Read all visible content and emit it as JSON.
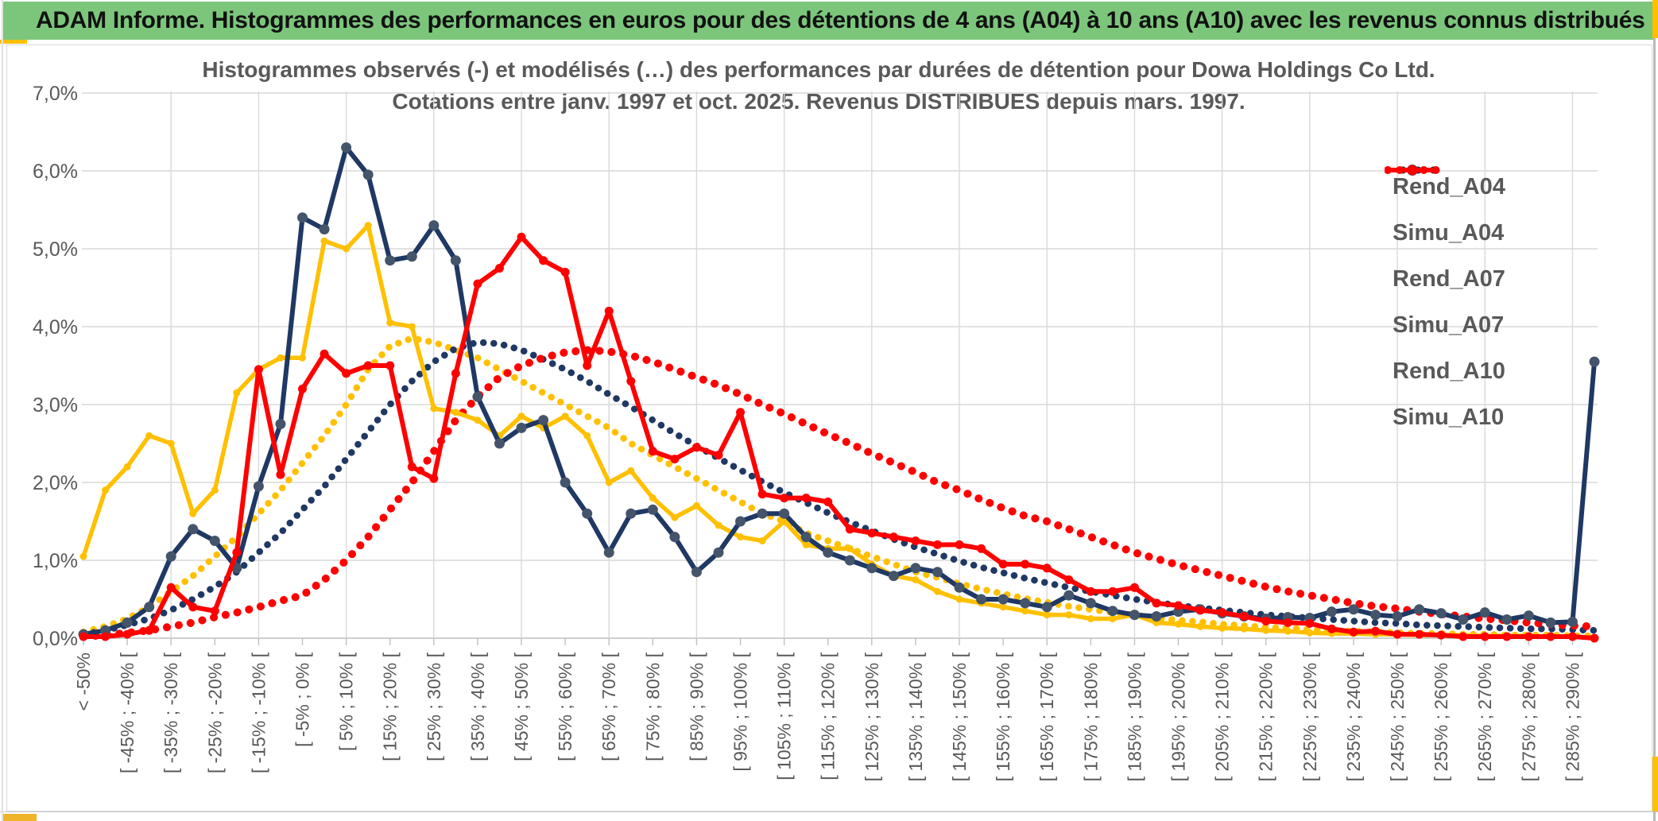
{
  "header": {
    "title": "ADAM Informe. Histogrammes des performances en euros pour des détentions de 4 ans (A04) à 10 ans (A10) avec les revenus connus distribués"
  },
  "chart_data": {
    "type": "line",
    "title": "Histogrammes observés (-) et modélisés (…) des performances par durées de détention pour Dowa Holdings Co Ltd.",
    "subtitle": "Cotations entre janv. 1997 et oct. 2025. Revenus DISTRIBUES depuis mars. 1997.",
    "ylabel": "",
    "xlabel": "",
    "ylim": [
      0,
      7
    ],
    "grid": true,
    "legend_position": "right",
    "y_tick_labels": [
      "0,0%",
      "1,0%",
      "2,0%",
      "3,0%",
      "4,0%",
      "5,0%",
      "6,0%",
      "7,0%"
    ],
    "n_bins": 70,
    "x_tick_every": 2,
    "x_tick_labels": [
      "< -50%",
      "[ -45% ; -40% [",
      "[ -35% ; -30% [",
      "[ -25% ; -20% [",
      "[ -15% ; -10% [",
      "[ -5% ; 0% [",
      "[ 5% ; 10% [",
      "[ 15% ; 20% [",
      "[ 25% ; 30% [",
      "[ 35% ; 40% [",
      "[ 45% ; 50% [",
      "[ 55% ; 60% [",
      "[ 65% ; 70% [",
      "[ 75% ; 80% [",
      "[ 85% ; 90% [",
      "[ 95% ; 100% [",
      "[ 105% ; 110% [",
      "[ 115% ; 120% [",
      "[ 125% ; 130% [",
      "[ 135% ; 140% [",
      "[ 145% ; 150% [",
      "[ 155% ; 160% [",
      "[ 165% ; 170% [",
      "[ 175% ; 180% [",
      "[ 185% ; 190% [",
      "[ 195% ; 200% [",
      "[ 205% ; 210% [",
      "[ 215% ; 220% [",
      "[ 225% ; 230% [",
      "[ 235% ; 240% [",
      "[ 245% ; 250% [",
      "[ 255% ; 260% [",
      "[ 265% ; 270% [",
      "[ 275% ; 280% [",
      "[ 285% ; 290% ["
    ],
    "colors": {
      "gold": "#FFC000",
      "navy": "#1F3864",
      "navy_marker": "#44546A",
      "red": "#FF0000",
      "grid": "#D9D9D9",
      "axis": "#BFBFBF",
      "text": "#595959",
      "header_green": "#7CC67C"
    },
    "series": [
      {
        "name": "Rend_A04",
        "style": "solid",
        "color": "#FFC000",
        "marker": "#FFC000",
        "values": [
          1.05,
          1.9,
          2.2,
          2.6,
          2.5,
          1.6,
          1.9,
          3.15,
          3.45,
          3.6,
          3.6,
          5.1,
          5.0,
          5.3,
          4.05,
          4.0,
          2.95,
          2.9,
          2.8,
          2.6,
          2.85,
          2.7,
          2.85,
          2.6,
          2.0,
          2.15,
          1.8,
          1.55,
          1.7,
          1.45,
          1.3,
          1.25,
          1.5,
          1.2,
          1.15,
          1.15,
          0.95,
          0.8,
          0.75,
          0.6,
          0.5,
          0.45,
          0.4,
          0.35,
          0.3,
          0.3,
          0.25,
          0.25,
          0.3,
          0.2,
          0.18,
          0.15,
          0.13,
          0.12,
          0.1,
          0.09,
          0.07,
          0.06,
          0.06,
          0.05,
          0.05,
          0.04,
          0.04,
          0.04,
          0.03,
          0.03,
          0.03,
          0.02,
          0.02,
          0.0
        ]
      },
      {
        "name": "Simu_A04",
        "style": "dotted",
        "color": "#FFC000",
        "marker": "#FFC000",
        "values": [
          0.08,
          0.15,
          0.25,
          0.4,
          0.6,
          0.8,
          1.05,
          1.3,
          1.6,
          1.9,
          2.25,
          2.6,
          3.0,
          3.45,
          3.75,
          3.85,
          3.8,
          3.7,
          3.6,
          3.45,
          3.3,
          3.15,
          3.0,
          2.85,
          2.7,
          2.5,
          2.35,
          2.2,
          2.05,
          1.9,
          1.75,
          1.6,
          1.5,
          1.35,
          1.25,
          1.15,
          1.05,
          0.95,
          0.85,
          0.78,
          0.7,
          0.63,
          0.57,
          0.51,
          0.46,
          0.41,
          0.37,
          0.33,
          0.3,
          0.26,
          0.23,
          0.21,
          0.18,
          0.16,
          0.14,
          0.13,
          0.11,
          0.1,
          0.09,
          0.08,
          0.07,
          0.06,
          0.06,
          0.05,
          0.05,
          0.04,
          0.04,
          0.04,
          0.03,
          0.03
        ]
      },
      {
        "name": "Rend_A07",
        "style": "solid",
        "color": "#1F3864",
        "marker": "#44546A",
        "values": [
          0.05,
          0.1,
          0.2,
          0.4,
          1.05,
          1.4,
          1.25,
          0.9,
          1.95,
          2.75,
          5.4,
          5.25,
          6.3,
          5.95,
          4.85,
          4.9,
          5.3,
          4.85,
          3.1,
          2.5,
          2.7,
          2.8,
          2.0,
          1.6,
          1.1,
          1.6,
          1.65,
          1.3,
          0.85,
          1.1,
          1.5,
          1.6,
          1.6,
          1.3,
          1.1,
          1.0,
          0.9,
          0.8,
          0.9,
          0.85,
          0.65,
          0.5,
          0.5,
          0.45,
          0.4,
          0.55,
          0.45,
          0.35,
          0.3,
          0.28,
          0.34,
          0.37,
          0.32,
          0.28,
          0.25,
          0.27,
          0.26,
          0.34,
          0.37,
          0.3,
          0.28,
          0.37,
          0.32,
          0.24,
          0.33,
          0.24,
          0.29,
          0.2,
          0.21,
          3.55
        ]
      },
      {
        "name": "Simu_A07",
        "style": "dotted",
        "color": "#1F3864",
        "marker": "#1F3864",
        "values": [
          0.05,
          0.1,
          0.17,
          0.25,
          0.36,
          0.5,
          0.66,
          0.85,
          1.1,
          1.35,
          1.65,
          1.95,
          2.3,
          2.65,
          3.0,
          3.3,
          3.55,
          3.72,
          3.8,
          3.78,
          3.7,
          3.58,
          3.45,
          3.3,
          3.13,
          2.97,
          2.8,
          2.63,
          2.47,
          2.31,
          2.16,
          2.01,
          1.87,
          1.74,
          1.61,
          1.49,
          1.38,
          1.27,
          1.17,
          1.08,
          0.99,
          0.91,
          0.84,
          0.77,
          0.71,
          0.65,
          0.6,
          0.55,
          0.5,
          0.46,
          0.42,
          0.39,
          0.36,
          0.33,
          0.3,
          0.28,
          0.26,
          0.24,
          0.22,
          0.2,
          0.19,
          0.17,
          0.16,
          0.15,
          0.14,
          0.13,
          0.12,
          0.12,
          0.11,
          0.1
        ]
      },
      {
        "name": "Rend_A10",
        "style": "solid",
        "color": "#FF0000",
        "marker": "#FF0000",
        "values": [
          0.02,
          0.02,
          0.05,
          0.1,
          0.65,
          0.4,
          0.35,
          1.1,
          3.45,
          2.1,
          3.2,
          3.65,
          3.4,
          3.5,
          3.5,
          2.2,
          2.05,
          3.4,
          4.55,
          4.75,
          5.15,
          4.85,
          4.7,
          3.5,
          4.2,
          3.3,
          2.4,
          2.3,
          2.45,
          2.35,
          2.9,
          1.85,
          1.8,
          1.8,
          1.75,
          1.4,
          1.35,
          1.3,
          1.25,
          1.2,
          1.2,
          1.15,
          0.95,
          0.95,
          0.9,
          0.75,
          0.6,
          0.6,
          0.65,
          0.45,
          0.42,
          0.36,
          0.33,
          0.28,
          0.22,
          0.2,
          0.19,
          0.12,
          0.08,
          0.09,
          0.05,
          0.05,
          0.04,
          0.02,
          0.02,
          0.02,
          0.02,
          0.02,
          0.02,
          0.0
        ]
      },
      {
        "name": "Simu_A10",
        "style": "dotted",
        "color": "#FF0000",
        "marker": "#FF0000",
        "values": [
          0.02,
          0.04,
          0.07,
          0.1,
          0.15,
          0.2,
          0.27,
          0.33,
          0.4,
          0.48,
          0.55,
          0.75,
          1.0,
          1.3,
          1.65,
          2.0,
          2.4,
          2.8,
          3.1,
          3.35,
          3.5,
          3.6,
          3.67,
          3.7,
          3.68,
          3.63,
          3.55,
          3.45,
          3.35,
          3.25,
          3.13,
          3.0,
          2.88,
          2.75,
          2.62,
          2.5,
          2.37,
          2.25,
          2.13,
          2.0,
          1.9,
          1.78,
          1.67,
          1.57,
          1.5,
          1.4,
          1.3,
          1.2,
          1.1,
          1.02,
          0.94,
          0.87,
          0.8,
          0.73,
          0.66,
          0.6,
          0.55,
          0.5,
          0.45,
          0.41,
          0.38,
          0.34,
          0.31,
          0.28,
          0.25,
          0.23,
          0.2,
          0.18,
          0.16,
          0.15
        ]
      }
    ],
    "legend": {
      "items": [
        {
          "label": "Rend_A04"
        },
        {
          "label": "Simu_A04"
        },
        {
          "label": "Rend_A07"
        },
        {
          "label": "Simu_A07"
        },
        {
          "label": "Rend_A10"
        },
        {
          "label": "Simu_A10"
        }
      ]
    }
  }
}
